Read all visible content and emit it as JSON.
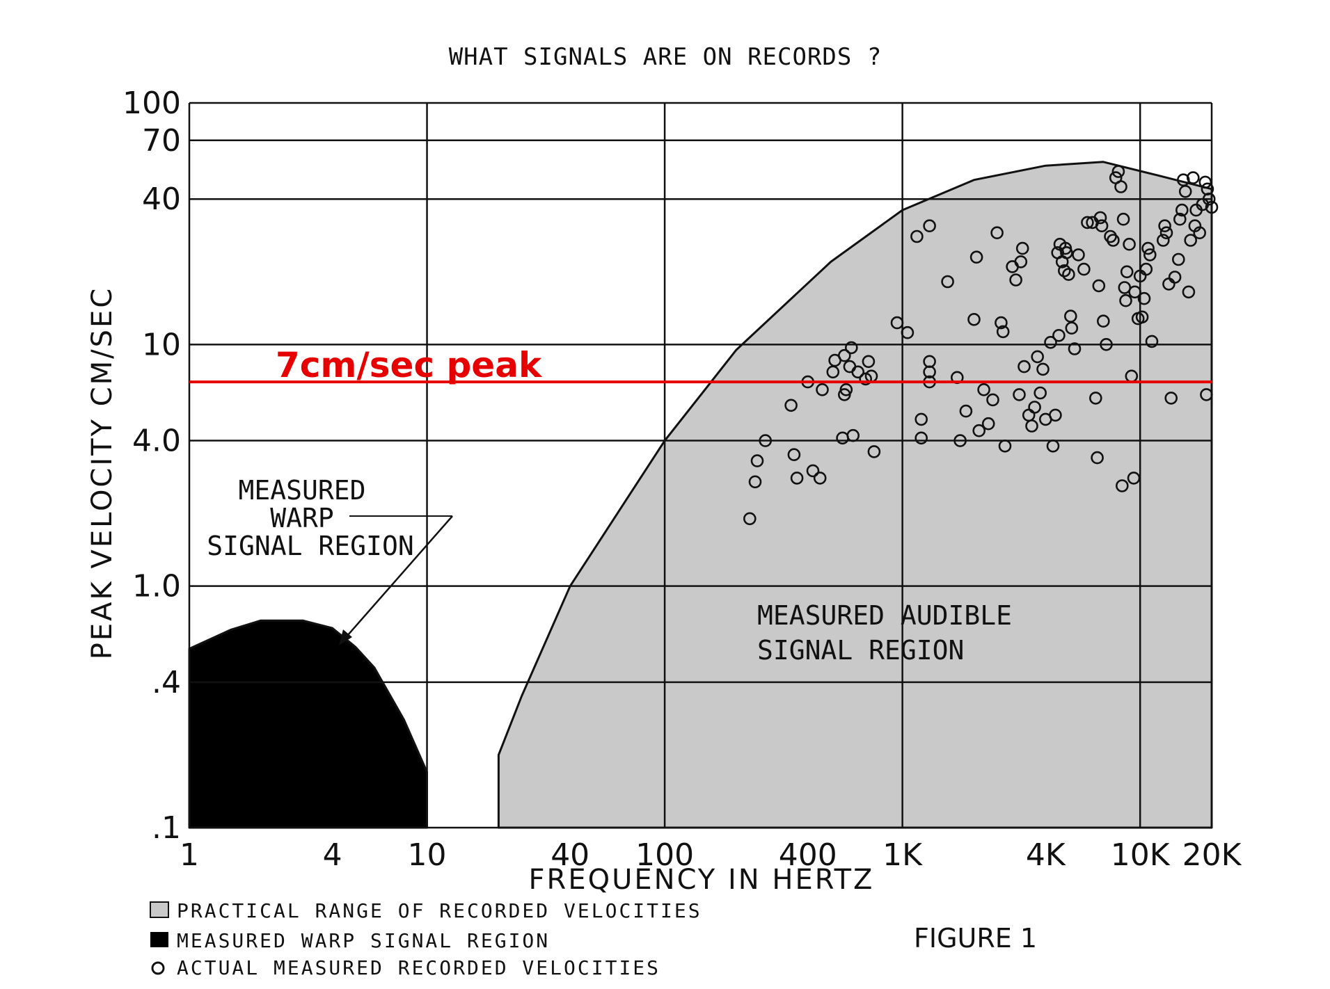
{
  "title": "WHAT SIGNALS ARE ON RECORDS ?",
  "figure_label": "FIGURE 1",
  "colors": {
    "audible_region_fill": "#c9c9c9",
    "warp_region_fill": "#000000",
    "peak_line": "#e60000",
    "grid": "#111111"
  },
  "region_labels": {
    "warp": [
      "MEASURED",
      "WARP",
      "SIGNAL REGION"
    ],
    "audible": [
      "MEASURED AUDIBLE",
      "SIGNAL REGION"
    ]
  },
  "peak_annotation": {
    "label": "7cm/sec peak",
    "value": 7
  },
  "legend": [
    {
      "label": "PRACTICAL RANGE OF RECORDED VELOCITIES",
      "marker": "gray-square"
    },
    {
      "label": "MEASURED WARP SIGNAL REGION",
      "marker": "black-square"
    },
    {
      "label": "ACTUAL MEASURED RECORDED VELOCITIES",
      "marker": "open-circle"
    }
  ],
  "chart_data": {
    "type": "scatter",
    "title": "WHAT SIGNALS ARE ON RECORDS ?",
    "xlabel": "FREQUENCY IN HERTZ",
    "ylabel": "PEAK VELOCITY CM/SEC",
    "x_scale": "log",
    "y_scale": "log",
    "xlim": [
      1,
      20000
    ],
    "ylim": [
      0.1,
      100
    ],
    "grid": true,
    "legend_position": "bottom-left",
    "x_ticks": [
      "1",
      "4",
      "10",
      "40",
      "100",
      "400",
      "1K",
      "4K",
      "10K",
      "20K"
    ],
    "x_tick_values": [
      1,
      4,
      10,
      40,
      100,
      400,
      1000,
      4000,
      10000,
      20000
    ],
    "y_ticks": [
      "100",
      "70",
      "40",
      "10",
      "4.0",
      "1.0",
      ".4",
      ".1"
    ],
    "y_tick_values": [
      100,
      70,
      40,
      10,
      4,
      1,
      0.4,
      0.1
    ],
    "x_grid_values": [
      1,
      10,
      100,
      1000,
      10000,
      20000
    ],
    "y_grid_values": [
      100,
      70,
      40,
      10,
      4,
      1,
      0.4,
      0.1
    ],
    "reference_line": {
      "label": "7cm/sec peak",
      "y": 7
    },
    "regions": [
      {
        "name": "PRACTICAL RANGE OF RECORDED VELOCITIES",
        "boundary": [
          [
            20,
            0.1
          ],
          [
            20,
            0.2
          ],
          [
            25,
            0.35
          ],
          [
            40,
            1.0
          ],
          [
            100,
            4.0
          ],
          [
            200,
            9.5
          ],
          [
            500,
            22
          ],
          [
            1000,
            36
          ],
          [
            2000,
            48
          ],
          [
            4000,
            55
          ],
          [
            7000,
            57
          ],
          [
            12000,
            50
          ],
          [
            20000,
            44
          ],
          [
            20000,
            0.1
          ]
        ]
      },
      {
        "name": "MEASURED WARP SIGNAL REGION",
        "boundary": [
          [
            1,
            0.1
          ],
          [
            1,
            0.55
          ],
          [
            1.5,
            0.66
          ],
          [
            2,
            0.72
          ],
          [
            3,
            0.72
          ],
          [
            4,
            0.67
          ],
          [
            5,
            0.56
          ],
          [
            6,
            0.46
          ],
          [
            8,
            0.28
          ],
          [
            10,
            0.17
          ],
          [
            10,
            0.1
          ]
        ]
      }
    ],
    "series": [
      {
        "name": "ACTUAL MEASURED RECORDED VELOCITIES",
        "points": [
          [
            228,
            1.9
          ],
          [
            240,
            2.7
          ],
          [
            245,
            3.3
          ],
          [
            265,
            4.0
          ],
          [
            340,
            5.6
          ],
          [
            350,
            3.5
          ],
          [
            360,
            2.8
          ],
          [
            400,
            7.0
          ],
          [
            420,
            3.0
          ],
          [
            450,
            2.8
          ],
          [
            460,
            6.5
          ],
          [
            560,
            4.1
          ],
          [
            510,
            7.7
          ],
          [
            520,
            8.6
          ],
          [
            570,
            6.2
          ],
          [
            580,
            6.5
          ],
          [
            600,
            8.1
          ],
          [
            620,
            4.2
          ],
          [
            650,
            7.7
          ],
          [
            700,
            7.2
          ],
          [
            720,
            8.5
          ],
          [
            740,
            7.4
          ],
          [
            760,
            3.6
          ],
          [
            570,
            9.0
          ],
          [
            610,
            9.7
          ],
          [
            950,
            12.3
          ],
          [
            1050,
            11.2
          ],
          [
            1150,
            28
          ],
          [
            1300,
            31
          ],
          [
            1200,
            4.1
          ],
          [
            1200,
            4.9
          ],
          [
            1300,
            7.0
          ],
          [
            1300,
            7.7
          ],
          [
            1300,
            8.5
          ],
          [
            1550,
            18.2
          ],
          [
            1700,
            7.3
          ],
          [
            1750,
            4.0
          ],
          [
            1850,
            5.3
          ],
          [
            2000,
            12.7
          ],
          [
            2050,
            23
          ],
          [
            2100,
            4.4
          ],
          [
            2200,
            6.5
          ],
          [
            2300,
            4.7
          ],
          [
            2400,
            5.9
          ],
          [
            2500,
            29
          ],
          [
            2600,
            12.3
          ],
          [
            2650,
            11.3
          ],
          [
            2700,
            3.8
          ],
          [
            2900,
            21
          ],
          [
            3000,
            18.5
          ],
          [
            3100,
            6.2
          ],
          [
            3150,
            22
          ],
          [
            3200,
            25
          ],
          [
            3250,
            8.1
          ],
          [
            3400,
            5.1
          ],
          [
            3500,
            4.6
          ],
          [
            3600,
            5.5
          ],
          [
            3700,
            8.9
          ],
          [
            3800,
            6.3
          ],
          [
            3900,
            7.9
          ],
          [
            4000,
            4.9
          ],
          [
            4200,
            10.2
          ],
          [
            4300,
            3.8
          ],
          [
            4400,
            5.1
          ],
          [
            4500,
            24
          ],
          [
            4550,
            10.9
          ],
          [
            4600,
            26
          ],
          [
            4700,
            22
          ],
          [
            4800,
            20.2
          ],
          [
            4850,
            25
          ],
          [
            4900,
            24
          ],
          [
            5000,
            19.5
          ],
          [
            5100,
            13.1
          ],
          [
            5150,
            11.7
          ],
          [
            5300,
            9.6
          ],
          [
            5500,
            23.5
          ],
          [
            5800,
            20.5
          ],
          [
            6000,
            32
          ],
          [
            6300,
            32
          ],
          [
            6500,
            6.0
          ],
          [
            6600,
            3.4
          ],
          [
            6700,
            17.5
          ],
          [
            6800,
            33.5
          ],
          [
            6900,
            31
          ],
          [
            7000,
            12.5
          ],
          [
            7200,
            10.0
          ],
          [
            7500,
            28
          ],
          [
            7700,
            27
          ],
          [
            7900,
            49
          ],
          [
            8100,
            52
          ],
          [
            8300,
            45
          ],
          [
            8400,
            2.6
          ],
          [
            8500,
            33
          ],
          [
            8600,
            17.2
          ],
          [
            8700,
            15.2
          ],
          [
            8800,
            20
          ],
          [
            9000,
            26
          ],
          [
            9200,
            7.4
          ],
          [
            9400,
            2.8
          ],
          [
            9500,
            16.5
          ],
          [
            9800,
            12.8
          ],
          [
            10000,
            19.2
          ],
          [
            10200,
            13.0
          ],
          [
            10400,
            15.5
          ],
          [
            10600,
            20.5
          ],
          [
            10800,
            25
          ],
          [
            11000,
            23.5
          ],
          [
            11200,
            10.3
          ],
          [
            12500,
            27
          ],
          [
            12700,
            31
          ],
          [
            12900,
            29
          ],
          [
            13200,
            17.8
          ],
          [
            13500,
            6.0
          ],
          [
            14000,
            19.0
          ],
          [
            14500,
            22.5
          ],
          [
            14700,
            33
          ],
          [
            15000,
            36
          ],
          [
            15200,
            48
          ],
          [
            15500,
            43
          ],
          [
            16000,
            16.5
          ],
          [
            16300,
            27
          ],
          [
            16700,
            49
          ],
          [
            17000,
            31
          ],
          [
            17200,
            36
          ],
          [
            17800,
            29
          ],
          [
            18300,
            38
          ],
          [
            18800,
            47
          ],
          [
            19200,
            44
          ],
          [
            19500,
            40
          ],
          [
            20000,
            37
          ],
          [
            19000,
            6.2
          ]
        ]
      }
    ]
  }
}
